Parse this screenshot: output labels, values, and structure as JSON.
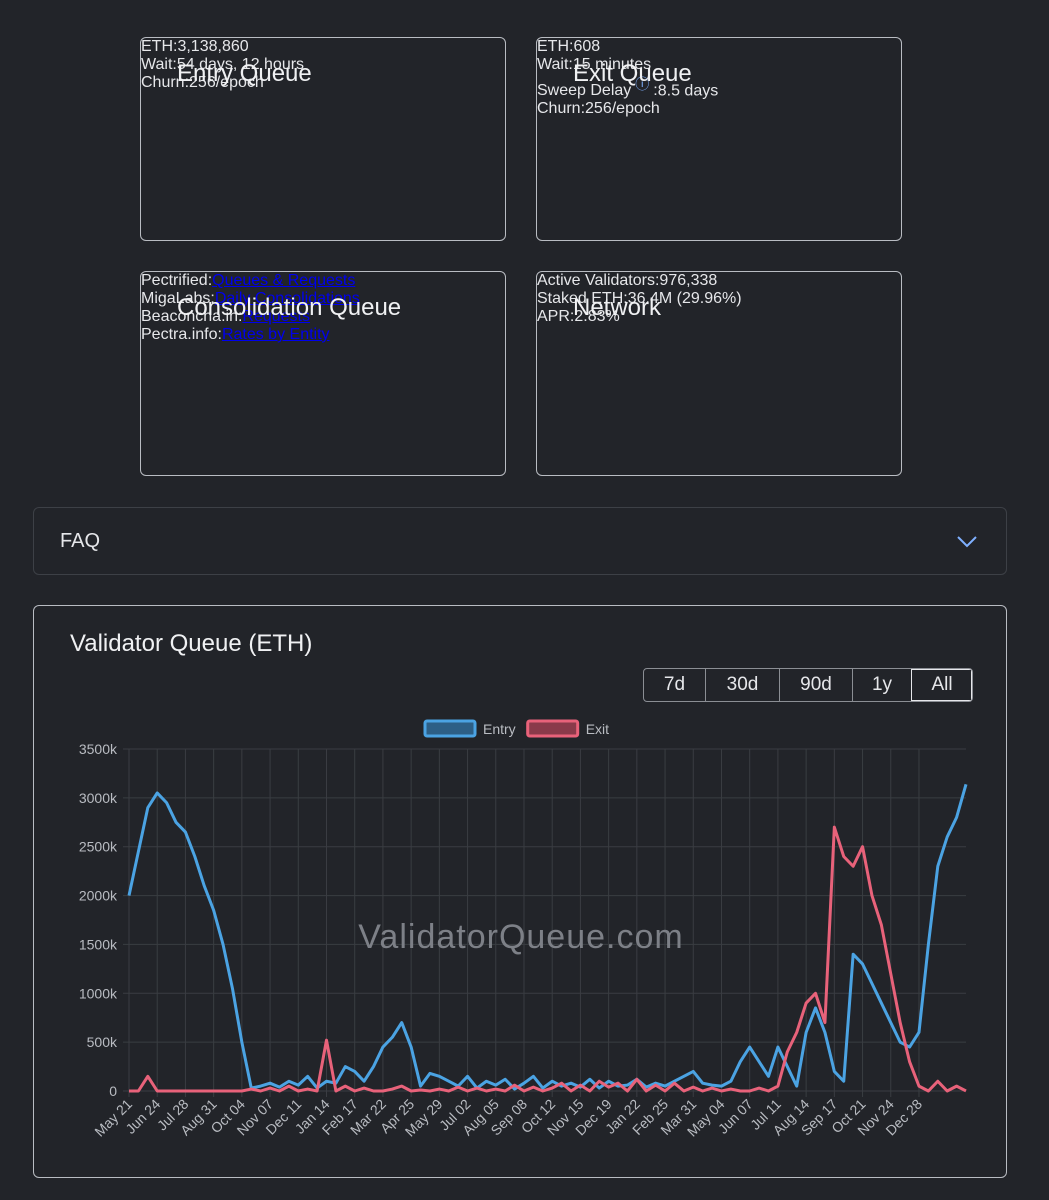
{
  "entry_queue": {
    "title": "Entry Queue",
    "rows": [
      {
        "label": "ETH:",
        "value": "3,138,860"
      },
      {
        "label": "Wait:",
        "value": "54 days, 12 hours"
      },
      {
        "label": "Churn:",
        "value": "256/epoch"
      }
    ]
  },
  "exit_queue": {
    "title": "Exit Queue",
    "rows": [
      {
        "label": "ETH:",
        "value": "608"
      },
      {
        "label": "Wait:",
        "value": "15 minutes"
      },
      {
        "label": "Sweep Delay",
        "suffix": ":",
        "value": "8.5 days"
      },
      {
        "label": "Churn:",
        "value": "256/epoch"
      }
    ]
  },
  "consolidation_queue": {
    "title": "Consolidation Queue",
    "rows": [
      {
        "label": "Pectrified:",
        "link": "Queues & Requests"
      },
      {
        "label": "MigaLabs:",
        "link": "Daily Consolidations"
      },
      {
        "label": "Beaconcha.in:",
        "link": "Requests"
      },
      {
        "label": "Pectra.info:",
        "link": "Rates by Entity"
      }
    ]
  },
  "network": {
    "title": "Network",
    "rows": [
      {
        "label": "Active Validators:",
        "value": "976,338"
      },
      {
        "label": "Staked ETH:",
        "value": "36.4M (29.96%)"
      },
      {
        "label": "APR:",
        "value": "2.83%"
      }
    ]
  },
  "faq": {
    "title": "FAQ"
  },
  "ranges": [
    "7d",
    "30d",
    "90d",
    "1y",
    "All"
  ],
  "active_range": 4,
  "chart_data": {
    "type": "line",
    "title": "Validator Queue (ETH)",
    "watermark": "ValidatorQueue.com",
    "categories": [
      "May 21",
      null,
      null,
      "Jun 24",
      null,
      null,
      "Jul 28",
      null,
      null,
      "Aug 31",
      null,
      null,
      "Oct 04",
      null,
      null,
      "Nov 07",
      null,
      null,
      "Dec 11",
      null,
      null,
      "Jan 14",
      null,
      null,
      "Feb 17",
      null,
      null,
      "Mar 22",
      null,
      null,
      "Apr 25",
      null,
      null,
      "May 29",
      null,
      null,
      "Jul 02",
      null,
      null,
      "Aug 05",
      null,
      null,
      "Sep 08",
      null,
      null,
      "Oct 12",
      null,
      null,
      "Nov 15",
      null,
      null,
      "Dec 19",
      null,
      null,
      "Jan 22",
      null,
      null,
      "Feb 25",
      null,
      null,
      "Mar 31",
      null,
      null,
      "May 04",
      null,
      null,
      "Jun 07",
      null,
      null,
      "Jul 11",
      null,
      null,
      "Aug 14",
      null,
      null,
      "Sep 17",
      null,
      null,
      "Oct 21",
      null,
      null,
      "Nov 24",
      null,
      null,
      "Dec 28",
      null,
      null,
      null,
      null,
      null
    ],
    "series": [
      {
        "name": "Entry",
        "color": "#4ba3e3",
        "fill": "#2d5f86",
        "values": [
          2000000,
          2450000,
          2900000,
          3050000,
          2950000,
          2750000,
          2650000,
          2400000,
          2100000,
          1850000,
          1500000,
          1050000,
          500000,
          30000,
          50000,
          80000,
          40000,
          100000,
          60000,
          150000,
          30000,
          100000,
          80000,
          250000,
          200000,
          100000,
          250000,
          450000,
          550000,
          700000,
          450000,
          50000,
          180000,
          150000,
          100000,
          50000,
          150000,
          30000,
          100000,
          60000,
          120000,
          20000,
          80000,
          150000,
          30000,
          100000,
          50000,
          80000,
          40000,
          120000,
          30000,
          100000,
          50000,
          60000,
          120000,
          40000,
          80000,
          50000,
          100000,
          150000,
          200000,
          80000,
          60000,
          50000,
          100000,
          300000,
          450000,
          300000,
          150000,
          450000,
          250000,
          50000,
          600000,
          850000,
          600000,
          200000,
          100000,
          1400000,
          1300000,
          1100000,
          900000,
          700000,
          500000,
          450000,
          600000,
          1500000,
          2300000,
          2600000,
          2800000,
          3138860
        ]
      },
      {
        "name": "Exit",
        "color": "#e8627a",
        "fill": "#8a3a4a",
        "values": [
          0,
          0,
          150000,
          0,
          0,
          0,
          0,
          0,
          0,
          0,
          0,
          0,
          0,
          20000,
          0,
          30000,
          0,
          50000,
          0,
          20000,
          0,
          520000,
          0,
          50000,
          0,
          30000,
          0,
          0,
          20000,
          50000,
          0,
          10000,
          0,
          20000,
          0,
          40000,
          0,
          30000,
          0,
          20000,
          0,
          60000,
          0,
          40000,
          0,
          30000,
          80000,
          0,
          60000,
          0,
          100000,
          40000,
          80000,
          0,
          120000,
          0,
          60000,
          0,
          80000,
          0,
          40000,
          0,
          30000,
          0,
          20000,
          0,
          0,
          30000,
          0,
          50000,
          400000,
          600000,
          900000,
          1000000,
          700000,
          2700000,
          2400000,
          2300000,
          2500000,
          2000000,
          1700000,
          1200000,
          700000,
          300000,
          50000,
          0,
          100000,
          0,
          50000,
          608
        ]
      }
    ],
    "ylim": [
      0,
      3500000
    ],
    "yticks": [
      0,
      {
        "value": 500000,
        "label": "500k"
      },
      {
        "value": 1000000,
        "label": "1000k"
      },
      {
        "value": 1500000,
        "label": "1500k"
      },
      {
        "value": 2000000,
        "label": "2000k"
      },
      {
        "value": 2500000,
        "label": "2500k"
      },
      {
        "value": 3000000,
        "label": "3000k"
      },
      {
        "value": 3500000,
        "label": "3500k"
      }
    ],
    "grid": true
  }
}
